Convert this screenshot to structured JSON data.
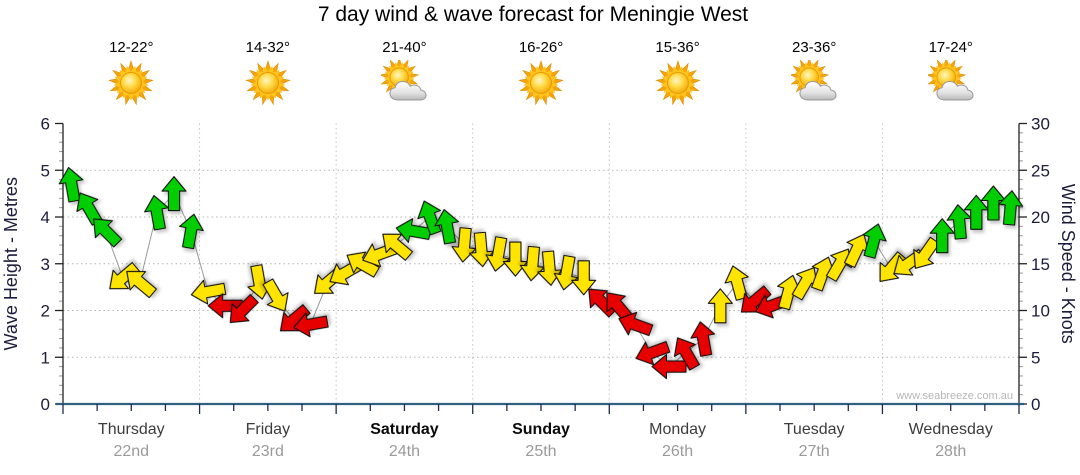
{
  "title": "7 day wind & wave forecast for Meningie West",
  "watermark": "www.seabreeze.com.au",
  "days": [
    {
      "name": "Thursday",
      "date": "22nd",
      "temp": "12-22°",
      "icon": "sunny",
      "bold": false
    },
    {
      "name": "Friday",
      "date": "23rd",
      "temp": "14-32°",
      "icon": "sunny",
      "bold": false
    },
    {
      "name": "Saturday",
      "date": "24th",
      "temp": "21-40°",
      "icon": "partly-cloudy",
      "bold": true
    },
    {
      "name": "Sunday",
      "date": "25th",
      "temp": "16-26°",
      "icon": "sunny",
      "bold": true
    },
    {
      "name": "Monday",
      "date": "26th",
      "temp": "15-36°",
      "icon": "sunny",
      "bold": false
    },
    {
      "name": "Tuesday",
      "date": "27th",
      "temp": "23-36°",
      "icon": "partly-cloudy",
      "bold": false
    },
    {
      "name": "Wednesday",
      "date": "28th",
      "temp": "17-24°",
      "icon": "partly-cloudy",
      "bold": false
    }
  ],
  "chart_data": {
    "type": "scatter",
    "subtype": "wind-direction-arrows",
    "title": "7 day wind & wave forecast for Meningie West",
    "left_axis": {
      "label": "Wave Height - Metres",
      "min": 0,
      "max": 6,
      "ticks": [
        0,
        1,
        2,
        3,
        4,
        5,
        6
      ]
    },
    "right_axis": {
      "label": "Wind Speed - Knots",
      "min": 0,
      "max": 30,
      "ticks": [
        0,
        5,
        10,
        15,
        20,
        25,
        30
      ]
    },
    "grid": "dotted horizontal at whole metres, dotted vertical at day boundaries",
    "points_per_day": 8,
    "colors": {
      "strong": "#00CE00",
      "moderate": "#FFE400",
      "light": "#E60000",
      "baseline": "#30607F"
    },
    "legend_position": "none",
    "points": [
      {
        "kn": 23.5,
        "dir": 350,
        "lv": "strong"
      },
      {
        "kn": 21.0,
        "dir": 330,
        "lv": "strong"
      },
      {
        "kn": 18.5,
        "dir": 315,
        "lv": "strong"
      },
      {
        "kn": 13.5,
        "dir": 230,
        "lv": "moderate"
      },
      {
        "kn": 13.0,
        "dir": 310,
        "lv": "moderate"
      },
      {
        "kn": 20.5,
        "dir": 350,
        "lv": "strong"
      },
      {
        "kn": 22.5,
        "dir": 0,
        "lv": "strong"
      },
      {
        "kn": 18.5,
        "dir": 10,
        "lv": "strong"
      },
      {
        "kn": 12.0,
        "dir": 260,
        "lv": "moderate"
      },
      {
        "kn": 10.5,
        "dir": 270,
        "lv": "light"
      },
      {
        "kn": 10.0,
        "dir": 225,
        "lv": "light"
      },
      {
        "kn": 13.0,
        "dir": 170,
        "lv": "moderate"
      },
      {
        "kn": 11.5,
        "dir": 150,
        "lv": "moderate"
      },
      {
        "kn": 9.0,
        "dir": 230,
        "lv": "light"
      },
      {
        "kn": 8.5,
        "dir": 260,
        "lv": "light"
      },
      {
        "kn": 13.0,
        "dir": 230,
        "lv": "moderate"
      },
      {
        "kn": 14.0,
        "dir": 240,
        "lv": "moderate"
      },
      {
        "kn": 15.0,
        "dir": 300,
        "lv": "moderate"
      },
      {
        "kn": 16.0,
        "dir": 250,
        "lv": "moderate"
      },
      {
        "kn": 17.0,
        "dir": 310,
        "lv": "moderate"
      },
      {
        "kn": 18.5,
        "dir": 280,
        "lv": "strong"
      },
      {
        "kn": 20.0,
        "dir": 340,
        "lv": "strong"
      },
      {
        "kn": 19.0,
        "dir": 350,
        "lv": "strong"
      },
      {
        "kn": 17.0,
        "dir": 185,
        "lv": "moderate"
      },
      {
        "kn": 16.5,
        "dir": 175,
        "lv": "moderate"
      },
      {
        "kn": 16.0,
        "dir": 190,
        "lv": "moderate"
      },
      {
        "kn": 15.5,
        "dir": 180,
        "lv": "moderate"
      },
      {
        "kn": 15.0,
        "dir": 185,
        "lv": "moderate"
      },
      {
        "kn": 14.5,
        "dir": 175,
        "lv": "moderate"
      },
      {
        "kn": 14.0,
        "dir": 190,
        "lv": "moderate"
      },
      {
        "kn": 13.5,
        "dir": 180,
        "lv": "moderate"
      },
      {
        "kn": 11.0,
        "dir": 315,
        "lv": "light"
      },
      {
        "kn": 10.5,
        "dir": 320,
        "lv": "light"
      },
      {
        "kn": 8.5,
        "dir": 290,
        "lv": "light"
      },
      {
        "kn": 5.5,
        "dir": 250,
        "lv": "light"
      },
      {
        "kn": 4.0,
        "dir": 270,
        "lv": "light"
      },
      {
        "kn": 5.5,
        "dir": 330,
        "lv": "light"
      },
      {
        "kn": 7.0,
        "dir": 350,
        "lv": "light"
      },
      {
        "kn": 10.5,
        "dir": 0,
        "lv": "moderate"
      },
      {
        "kn": 13.0,
        "dir": 345,
        "lv": "moderate"
      },
      {
        "kn": 11.0,
        "dir": 230,
        "lv": "light"
      },
      {
        "kn": 10.5,
        "dir": 250,
        "lv": "light"
      },
      {
        "kn": 12.0,
        "dir": 15,
        "lv": "moderate"
      },
      {
        "kn": 13.0,
        "dir": 30,
        "lv": "moderate"
      },
      {
        "kn": 14.0,
        "dir": 20,
        "lv": "moderate"
      },
      {
        "kn": 15.0,
        "dir": 30,
        "lv": "moderate"
      },
      {
        "kn": 16.5,
        "dir": 25,
        "lv": "moderate"
      },
      {
        "kn": 17.5,
        "dir": 15,
        "lv": "strong"
      },
      {
        "kn": 14.5,
        "dir": 220,
        "lv": "moderate"
      },
      {
        "kn": 15.0,
        "dir": 235,
        "lv": "moderate"
      },
      {
        "kn": 16.0,
        "dir": 215,
        "lv": "moderate"
      },
      {
        "kn": 18.0,
        "dir": 0,
        "lv": "strong"
      },
      {
        "kn": 19.5,
        "dir": 355,
        "lv": "strong"
      },
      {
        "kn": 20.5,
        "dir": 0,
        "lv": "strong"
      },
      {
        "kn": 21.5,
        "dir": 0,
        "lv": "strong"
      },
      {
        "kn": 21.0,
        "dir": 5,
        "lv": "strong"
      }
    ]
  }
}
